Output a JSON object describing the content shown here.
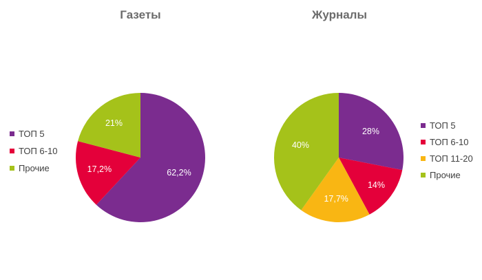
{
  "chart_data": [
    {
      "type": "pie",
      "title": "Газеты",
      "categories": [
        "ТОП 5",
        "ТОП 6-10",
        "Прочие"
      ],
      "values": [
        62.2,
        17.2,
        21
      ],
      "labels": [
        "62,2%",
        "17,2%",
        "21%"
      ],
      "colors": [
        "#7b2c8f",
        "#e4003a",
        "#a5c21a"
      ],
      "legend": {
        "position": "left",
        "entries": [
          "ТОП 5",
          "ТОП 6-10",
          "Прочие"
        ]
      }
    },
    {
      "type": "pie",
      "title": "Журналы",
      "categories": [
        "ТОП 5",
        "ТОП 6-10",
        "ТОП 11-20",
        "Прочие"
      ],
      "values": [
        28,
        14,
        17.7,
        40
      ],
      "labels": [
        "28%",
        "14%",
        "17,7%",
        "40%"
      ],
      "colors": [
        "#7b2c8f",
        "#e4003a",
        "#f9b613",
        "#a5c21a"
      ],
      "legend": {
        "position": "right",
        "entries": [
          "ТОП 5",
          "ТОП 6-10",
          "ТОП 11-20",
          "Прочие"
        ]
      }
    }
  ]
}
